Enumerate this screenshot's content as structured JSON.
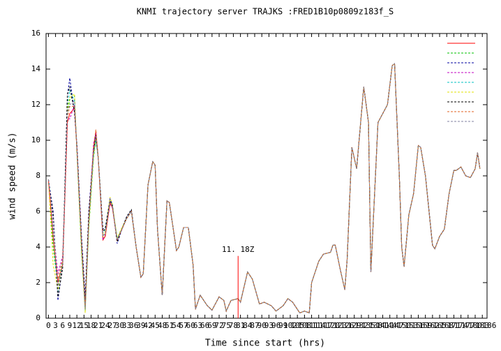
{
  "chart_data": {
    "type": "line",
    "title": "KNMI trajectory server TRAJKS :FRED1B10p0809z183f_S",
    "xlabel": "Time since start (hrs)",
    "ylabel": "wind speed (m/s)",
    "xlim": [
      -1,
      185
    ],
    "ylim": [
      0,
      16
    ],
    "xticks": [
      0,
      3,
      6,
      9,
      12,
      15,
      18,
      21,
      24,
      27,
      30,
      33,
      36,
      39,
      42,
      45,
      48,
      51,
      54,
      57,
      60,
      63,
      66,
      69,
      72,
      75,
      78,
      81,
      84,
      87,
      90,
      93,
      96,
      99,
      102,
      105,
      108,
      111,
      114,
      117,
      120,
      123,
      126,
      129,
      132,
      135,
      138,
      141,
      144,
      147,
      150,
      153,
      156,
      159,
      162,
      165,
      168,
      171,
      174,
      177,
      180,
      183,
      186
    ],
    "yticks": [
      0,
      2,
      4,
      6,
      8,
      10,
      12,
      14,
      16
    ],
    "legend": "upper right",
    "annotation": {
      "text": "11. 18Z",
      "x": 80,
      "y": 3.5,
      "color": "#ff0000"
    },
    "x": [
      0,
      2,
      4,
      6,
      8,
      9,
      11,
      12,
      14,
      15.5,
      17,
      19,
      20,
      21,
      23,
      24,
      26,
      27,
      29,
      31,
      33,
      35,
      37,
      39,
      40,
      42,
      44,
      45,
      46,
      48,
      50,
      51,
      54,
      55,
      57,
      59,
      61,
      62,
      64,
      66,
      67,
      69,
      72,
      74,
      75,
      77,
      80,
      81,
      84,
      86,
      89,
      91,
      94,
      96,
      99,
      101,
      103,
      105,
      106,
      108,
      110,
      111,
      114,
      116,
      119,
      120,
      121,
      123,
      125,
      126,
      128,
      130,
      133,
      135,
      136,
      139,
      141,
      143,
      145,
      146,
      148,
      149,
      150,
      152,
      154,
      156,
      157,
      159,
      162,
      163,
      165,
      167,
      169,
      171,
      172,
      174,
      176,
      178,
      180,
      181,
      182
    ],
    "series": [
      {
        "color": "#ff0000",
        "values": [
          7.8,
          4.5,
          2,
          3,
          11,
          11.5,
          11.8,
          9.5,
          4,
          0.5,
          5.5,
          9.5,
          10.5,
          9,
          4.4,
          4.6,
          6.5,
          6.2,
          4.4,
          5,
          5.6,
          6,
          4,
          2.3,
          2.5,
          7.5,
          8.8,
          8.6,
          5,
          1.3,
          6.6,
          6.5,
          3.8,
          4,
          5.1,
          5.1,
          3,
          0.5,
          1.3,
          0.9,
          0.7,
          0.45,
          1.2,
          1,
          0.4,
          1,
          1.1,
          0.9,
          2.6,
          2.2,
          0.8,
          0.9,
          0.7,
          0.4,
          0.7,
          1.1,
          0.9,
          0.5,
          0.3,
          0.4,
          0.3,
          2,
          3.2,
          3.6,
          3.7,
          4.1,
          4.1,
          2.8,
          1.6,
          3.3,
          9.6,
          8.4,
          13,
          11,
          2.6,
          11,
          11.5,
          12,
          14.2,
          14.3,
          8,
          4,
          2.9,
          5.8,
          7,
          9.7,
          9.6,
          8,
          4.1,
          3.9,
          4.6,
          5,
          7,
          8.3,
          8.3,
          8.5,
          8,
          7.9,
          8.4,
          9.3,
          8.4
        ]
      },
      {
        "color": "#00c000",
        "values": [
          7.8,
          4,
          1.8,
          3.2,
          11.5,
          12.3,
          12.5,
          9.3,
          3.5,
          0.5,
          5,
          9,
          10,
          9,
          4.6,
          4.8,
          6.6,
          6.3,
          4.5,
          5,
          5.6,
          6,
          4,
          2.3,
          2.5,
          7.5,
          8.8,
          8.6,
          5,
          1.3,
          6.6,
          6.5,
          3.8,
          4,
          5.1,
          5.1,
          3,
          0.5,
          1.3,
          0.9,
          0.7,
          0.45,
          1.2,
          1,
          0.4,
          1,
          1.1,
          0.9,
          2.6,
          2.2,
          0.8,
          0.9,
          0.7,
          0.4,
          0.7,
          1.1,
          0.9,
          0.5,
          0.3,
          0.4,
          0.3,
          2,
          3.2,
          3.6,
          3.7,
          4.1,
          4.1,
          2.8,
          1.6,
          3.3,
          9.6,
          8.4,
          13,
          11,
          2.6,
          11,
          11.5,
          12,
          14.2,
          14.3,
          8,
          4,
          2.9,
          5.8,
          7,
          9.7,
          9.6,
          8,
          4.1,
          3.9,
          4.6,
          5,
          7,
          8.3,
          8.3,
          8.5,
          8,
          7.9,
          8.4,
          9.3,
          8.4
        ]
      },
      {
        "color": "#0000a0",
        "values": [
          7.8,
          6,
          1,
          3,
          12.5,
          13.5,
          11.5,
          9.8,
          4.5,
          1.2,
          6,
          9.5,
          10.2,
          9,
          5,
          5.1,
          6.7,
          6.4,
          4.2,
          5,
          5.7,
          6.1,
          4,
          2.3,
          2.5,
          7.5,
          8.8,
          8.6,
          5,
          1.3,
          6.6,
          6.5,
          3.8,
          4,
          5.1,
          5.1,
          3,
          0.5,
          1.3,
          0.9,
          0.7,
          0.45,
          1.2,
          1,
          0.4,
          1,
          1.1,
          0.9,
          2.6,
          2.2,
          0.8,
          0.9,
          0.7,
          0.4,
          0.7,
          1.1,
          0.9,
          0.5,
          0.3,
          0.4,
          0.3,
          2,
          3.2,
          3.6,
          3.7,
          4.1,
          4.1,
          2.8,
          1.6,
          3.3,
          9.6,
          8.4,
          13,
          11,
          2.6,
          11,
          11.5,
          12,
          14.2,
          14.3,
          8,
          4,
          2.9,
          5.8,
          7,
          9.7,
          9.6,
          8,
          4.1,
          3.9,
          4.6,
          5,
          7,
          8.3,
          8.3,
          8.5,
          8,
          7.9,
          8.4,
          9.3,
          8.4
        ]
      },
      {
        "color": "#c000c0",
        "values": [
          7.8,
          5,
          2.5,
          3.5,
          11.2,
          11.2,
          12,
          9.6,
          4.2,
          0.7,
          5.3,
          9.8,
          10.4,
          9,
          4.4,
          4.7,
          6.4,
          6.2,
          4.4,
          5,
          5.6,
          6,
          4,
          2.3,
          2.5,
          7.5,
          8.8,
          8.6,
          5,
          1.3,
          6.6,
          6.5,
          3.8,
          4,
          5.1,
          5.1,
          3,
          0.5,
          1.3,
          0.9,
          0.7,
          0.45,
          1.2,
          1,
          0.4,
          1,
          1.1,
          0.9,
          2.6,
          2.2,
          0.8,
          0.9,
          0.7,
          0.4,
          0.7,
          1.1,
          0.9,
          0.5,
          0.3,
          0.4,
          0.3,
          2,
          3.2,
          3.6,
          3.7,
          4.1,
          4.1,
          2.8,
          1.6,
          3.3,
          9.6,
          8.4,
          13,
          11,
          2.6,
          11,
          11.5,
          12,
          14.2,
          14.3,
          8,
          4,
          2.9,
          5.8,
          7,
          9.7,
          9.6,
          8,
          4.1,
          3.9,
          4.6,
          5,
          7,
          8.3,
          8.3,
          8.5,
          8,
          7.9,
          8.4,
          9.3,
          8.4
        ]
      },
      {
        "color": "#00c0c0",
        "values": [
          7.8,
          4.8,
          1.5,
          3.2,
          12,
          12.8,
          12.2,
          9.5,
          3.8,
          0.4,
          5.2,
          9.2,
          10,
          9,
          4.8,
          5,
          6.6,
          6.3,
          4.5,
          5,
          5.6,
          6,
          4,
          2.3,
          2.5,
          7.5,
          8.8,
          8.6,
          5,
          1.3,
          6.6,
          6.5,
          3.8,
          4,
          5.1,
          5.1,
          3,
          0.5,
          1.3,
          0.9,
          0.7,
          0.45,
          1.2,
          1,
          0.4,
          1,
          1.1,
          0.9,
          2.6,
          2.2,
          0.8,
          0.9,
          0.7,
          0.4,
          0.7,
          1.1,
          0.9,
          0.5,
          0.3,
          0.4,
          0.3,
          2,
          3.2,
          3.6,
          3.7,
          4.1,
          4.1,
          2.8,
          1.6,
          3.3,
          9.6,
          8.4,
          13,
          11,
          2.6,
          11,
          11.5,
          12,
          14.2,
          14.3,
          8,
          4,
          2.9,
          5.8,
          7,
          9.7,
          9.6,
          8,
          4.1,
          3.9,
          4.6,
          5,
          7,
          8.3,
          8.3,
          8.5,
          8,
          7.9,
          8.4,
          9.3,
          8.4
        ]
      },
      {
        "color": "#e0e000",
        "values": [
          7.8,
          3,
          1.6,
          3.1,
          11.8,
          12.4,
          12.6,
          9.4,
          3.6,
          0.3,
          5.1,
          9.1,
          10.1,
          9,
          4.6,
          4.9,
          6.8,
          6.4,
          4.5,
          5.1,
          5.6,
          6,
          4,
          2.3,
          2.5,
          7.5,
          8.8,
          8.6,
          5,
          1.3,
          6.6,
          6.5,
          3.8,
          4,
          5.1,
          5.1,
          3,
          0.5,
          1.3,
          0.9,
          0.7,
          0.45,
          1.2,
          1,
          0.4,
          1,
          1.1,
          0.9,
          2.6,
          2.2,
          0.8,
          0.9,
          0.7,
          0.4,
          0.7,
          1.1,
          0.9,
          0.5,
          0.3,
          0.4,
          0.3,
          2,
          3.2,
          3.6,
          3.7,
          4.1,
          4.1,
          2.8,
          1.6,
          3.3,
          9.6,
          8.4,
          13,
          11,
          2.6,
          11,
          11.5,
          12,
          14.2,
          14.3,
          8,
          4,
          2.9,
          5.8,
          7,
          9.7,
          9.6,
          8,
          4.1,
          3.9,
          4.6,
          5,
          7,
          8.3,
          8.3,
          8.5,
          8,
          7.9,
          8.4,
          9.3,
          8.4
        ]
      },
      {
        "color": "#000000",
        "values": [
          7.8,
          5.8,
          1.2,
          2.8,
          12.6,
          13,
          11.6,
          9.7,
          4.3,
          1,
          5.8,
          9.4,
          10.3,
          9,
          4.9,
          5,
          6.6,
          6.3,
          4.3,
          5,
          5.7,
          6.1,
          4,
          2.3,
          2.5,
          7.5,
          8.8,
          8.6,
          5,
          1.3,
          6.6,
          6.5,
          3.8,
          4,
          5.1,
          5.1,
          3,
          0.5,
          1.3,
          0.9,
          0.7,
          0.45,
          1.2,
          1,
          0.4,
          1,
          1.1,
          0.9,
          2.6,
          2.2,
          0.8,
          0.9,
          0.7,
          0.4,
          0.7,
          1.1,
          0.9,
          0.5,
          0.3,
          0.4,
          0.3,
          2,
          3.2,
          3.6,
          3.7,
          4.1,
          4.1,
          2.8,
          1.6,
          3.3,
          9.6,
          8.4,
          13,
          11,
          2.6,
          11,
          11.5,
          12,
          14.2,
          14.3,
          8,
          4,
          2.9,
          5.8,
          7,
          9.7,
          9.6,
          8,
          4.1,
          3.9,
          4.6,
          5,
          7,
          8.3,
          8.3,
          8.5,
          8,
          7.9,
          8.4,
          9.3,
          8.4
        ]
      },
      {
        "color": "#e06020",
        "values": [
          7.8,
          4.6,
          2.2,
          3.3,
          11.3,
          11.9,
          11.9,
          9.5,
          4,
          0.6,
          5.4,
          9.6,
          10.6,
          9,
          4.5,
          4.6,
          6.5,
          6.2,
          4.4,
          5,
          5.6,
          6,
          4,
          2.3,
          2.5,
          7.5,
          8.8,
          8.6,
          5,
          1.3,
          6.6,
          6.5,
          3.8,
          4,
          5.1,
          5.1,
          3,
          0.5,
          1.3,
          0.9,
          0.7,
          0.45,
          1.2,
          1,
          0.4,
          1,
          1.1,
          0.9,
          2.6,
          2.2,
          0.8,
          0.9,
          0.7,
          0.4,
          0.7,
          1.1,
          0.9,
          0.5,
          0.3,
          0.4,
          0.3,
          2,
          3.2,
          3.6,
          3.7,
          4.1,
          4.1,
          2.8,
          1.6,
          3.3,
          9.6,
          8.4,
          13,
          11,
          2.6,
          11,
          11.5,
          12,
          14.2,
          14.3,
          8,
          4,
          2.9,
          5.8,
          7,
          9.7,
          9.6,
          8,
          4.1,
          3.9,
          4.6,
          5,
          7,
          8.3,
          8.3,
          8.5,
          8,
          7.9,
          8.4,
          9.3,
          8.4
        ]
      },
      {
        "color": "#8080a0",
        "values": [
          7.8,
          5.5,
          1.8,
          3,
          11.6,
          12,
          12.2,
          9.5,
          4,
          0.5,
          5.5,
          9.3,
          10.2,
          9,
          4.6,
          4.8,
          6.6,
          6.3,
          4.4,
          5,
          5.6,
          6,
          4,
          2.3,
          2.5,
          7.5,
          8.8,
          8.6,
          5,
          1.3,
          6.6,
          6.5,
          3.8,
          4,
          5.1,
          5.1,
          3,
          0.5,
          1.3,
          0.9,
          0.7,
          0.45,
          1.2,
          1,
          0.4,
          1,
          1.1,
          0.9,
          2.6,
          2.2,
          0.8,
          0.9,
          0.7,
          0.4,
          0.7,
          1.1,
          0.9,
          0.5,
          0.3,
          0.4,
          0.3,
          2,
          3.2,
          3.6,
          3.7,
          4.1,
          4.1,
          2.8,
          1.6,
          3.3,
          9.6,
          8.4,
          13,
          11,
          2.6,
          11,
          11.5,
          12,
          14.2,
          14.3,
          8,
          4,
          2.9,
          5.8,
          7,
          9.7,
          9.6,
          8,
          4.1,
          3.9,
          4.6,
          5,
          7,
          8.3,
          8.3,
          8.5,
          8,
          7.9,
          8.4,
          9.3,
          8.4
        ]
      }
    ]
  }
}
